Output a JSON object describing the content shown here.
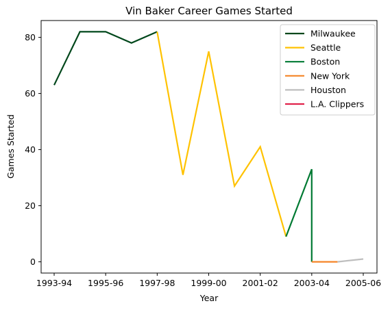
{
  "chart_data": {
    "type": "line",
    "title": "Vin Baker Career Games Started",
    "xlabel": "Year",
    "ylabel": "Games Started",
    "x_categories": [
      "1993-94",
      "1994-95",
      "1995-96",
      "1996-97",
      "1997-98",
      "1998-99",
      "1999-00",
      "2000-01",
      "2001-02",
      "2002-03",
      "2003-04",
      "2004-05",
      "2005-06"
    ],
    "x_tick_labels": [
      "1993-94",
      "1995-96",
      "1997-98",
      "1999-00",
      "2001-02",
      "2003-04",
      "2005-06"
    ],
    "y_ticks": [
      0,
      20,
      40,
      60,
      80
    ],
    "ylim": [
      -4,
      86
    ],
    "grid": false,
    "legend_position": "upper-right",
    "series": [
      {
        "name": "Milwaukee",
        "color": "#00471B",
        "points": [
          [
            "1993-94",
            63
          ],
          [
            "1994-95",
            82
          ],
          [
            "1995-96",
            82
          ],
          [
            "1996-97",
            78
          ],
          [
            "1997-98",
            82
          ]
        ]
      },
      {
        "name": "Seattle",
        "color": "#FFC200",
        "points": [
          [
            "1997-98",
            82
          ],
          [
            "1998-99",
            31
          ],
          [
            "1999-00",
            75
          ],
          [
            "2000-01",
            27
          ],
          [
            "2001-02",
            41
          ],
          [
            "2002-03",
            9
          ]
        ]
      },
      {
        "name": "Boston",
        "color": "#007A33",
        "points": [
          [
            "2002-03",
            9
          ],
          [
            "2003-04",
            33
          ],
          [
            "2003-04",
            0
          ]
        ]
      },
      {
        "name": "New York",
        "color": "#F58426",
        "points": [
          [
            "2003-04",
            0
          ],
          [
            "2004-05",
            0
          ]
        ]
      },
      {
        "name": "Houston",
        "color": "#BEBEBE",
        "points": [
          [
            "2004-05",
            0
          ],
          [
            "2005-06",
            1
          ]
        ]
      },
      {
        "name": "L.A. Clippers",
        "color": "#E0224A",
        "points": []
      }
    ]
  }
}
